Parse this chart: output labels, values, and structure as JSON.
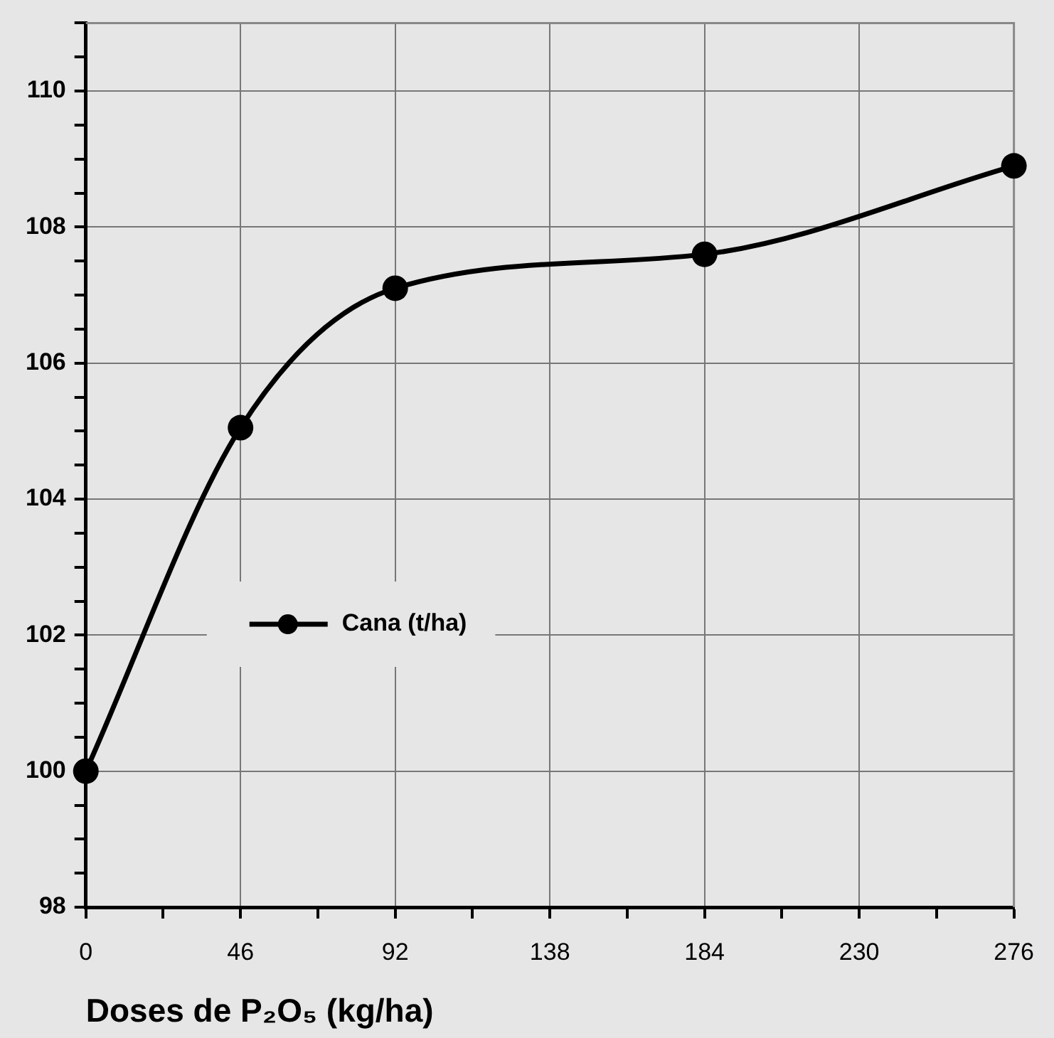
{
  "chart_data": {
    "type": "line",
    "xlabel": "Doses de P₂O₅ (kg/ha)",
    "x": [
      0,
      46,
      92,
      184,
      276
    ],
    "series": [
      {
        "name": "Cana (t/ha)",
        "color": "#000000",
        "values": [
          100,
          105.05,
          107.1,
          107.6,
          108.9
        ]
      }
    ],
    "xlim": [
      0,
      276
    ],
    "xticks": [
      0,
      {
        "value": 23,
        "label": null
      },
      46,
      {
        "value": 69,
        "label": null
      },
      92,
      {
        "value": 115,
        "label": null
      },
      138,
      {
        "value": 161,
        "label": null
      },
      184,
      {
        "value": 207,
        "label": null
      },
      230,
      {
        "value": 253,
        "label": null
      },
      276
    ],
    "ylim": [
      98,
      111
    ],
    "yticks": [
      98,
      {
        "value": 98.5,
        "label": null
      },
      {
        "value": 99,
        "label": null
      },
      {
        "value": 99.5,
        "label": null
      },
      100,
      {
        "value": 100.5,
        "label": null
      },
      {
        "value": 101,
        "label": null
      },
      {
        "value": 101.5,
        "label": null
      },
      102,
      {
        "value": 102.5,
        "label": null
      },
      {
        "value": 103,
        "label": null
      },
      {
        "value": 103.5,
        "label": null
      },
      104,
      {
        "value": 104.5,
        "label": null
      },
      {
        "value": 105,
        "label": null
      },
      {
        "value": 105.5,
        "label": null
      },
      106,
      {
        "value": 106.5,
        "label": null
      },
      {
        "value": 107,
        "label": null
      },
      {
        "value": 107.5,
        "label": null
      },
      108,
      {
        "value": 108.5,
        "label": null
      },
      {
        "value": 109,
        "label": null
      },
      {
        "value": 109.5,
        "label": null
      },
      110,
      {
        "value": 110.5,
        "label": null
      },
      {
        "value": 111,
        "label": null
      }
    ],
    "grid": true,
    "legend": "left",
    "marker": "circle",
    "line_style": "solid"
  }
}
